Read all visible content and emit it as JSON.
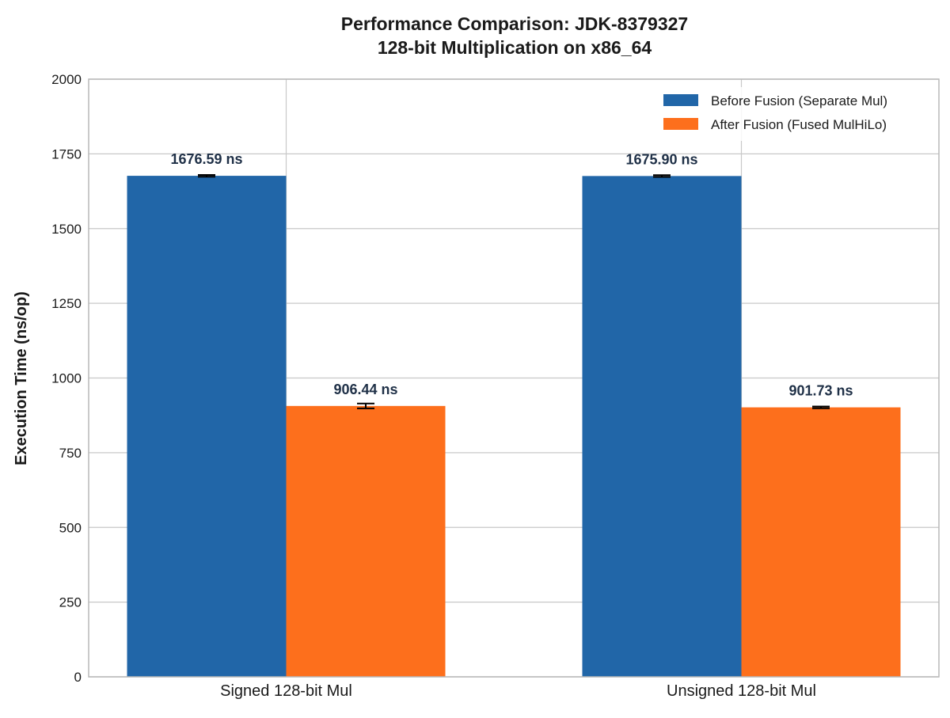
{
  "chart_data": {
    "type": "bar",
    "title": "Performance Comparison: JDK-8379327",
    "subtitle": "128-bit Multiplication on x86_64",
    "xlabel": "",
    "ylabel": "Execution Time (ns/op)",
    "ylim": [
      0,
      2000
    ],
    "yticks": [
      0,
      250,
      500,
      750,
      1000,
      1250,
      1500,
      1750,
      2000
    ],
    "categories": [
      "Signed 128-bit Mul",
      "Unsigned 128-bit Mul"
    ],
    "series": [
      {
        "name": "Before Fusion (Separate Mul)",
        "color": "#2166a8",
        "values": [
          1676.59,
          1675.9
        ],
        "errors": [
          3,
          3
        ],
        "labels": [
          "1676.59 ns",
          "1675.90 ns"
        ]
      },
      {
        "name": "After Fusion (Fused MulHiLo)",
        "color": "#fd6f1c",
        "values": [
          906.44,
          901.73
        ],
        "errors": [
          8,
          3
        ],
        "labels": [
          "906.44 ns",
          "901.73 ns"
        ]
      }
    ],
    "grid": true,
    "legend_position": "top-right"
  }
}
